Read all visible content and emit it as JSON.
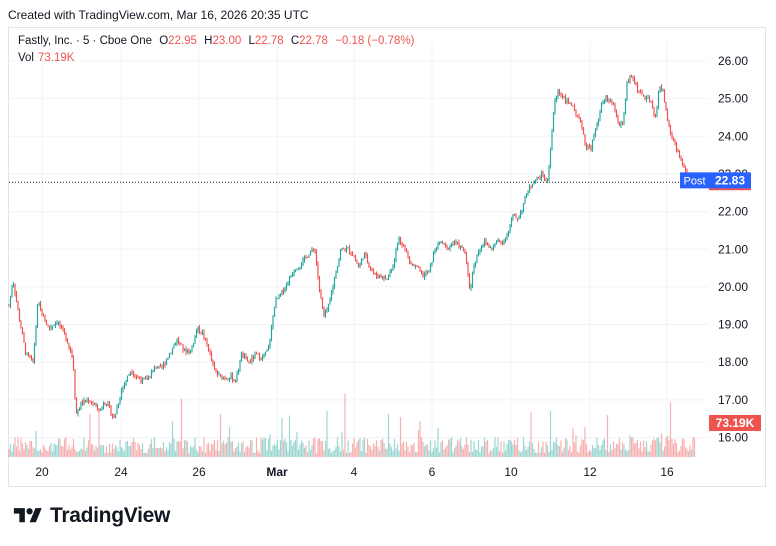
{
  "header": {
    "created_text": "Created with TradingView.com, Mar 16, 2026 20:35 UTC"
  },
  "legend": {
    "symbol": "Fastly, Inc. · 5 · Cboe One",
    "open_label": "O",
    "open": "22.95",
    "high_label": "H",
    "high": "23.00",
    "low_label": "L",
    "low": "22.78",
    "close_label": "C",
    "close": "22.78",
    "change": "−0.18 (−0.78%)",
    "volume_label": "Vol",
    "volume": "73.19K"
  },
  "brand": {
    "name": "TradingView"
  },
  "colors": {
    "up": "#26a69a",
    "down": "#ef5350",
    "post": "#2962ff",
    "grid": "#f0f3fa",
    "text": "#131722"
  },
  "chart_data": {
    "type": "candlestick",
    "interval": "5",
    "ylim": [
      15.5,
      26.4
    ],
    "y_ticks": [
      "16.00",
      "17.00",
      "18.00",
      "19.00",
      "20.00",
      "21.00",
      "22.00",
      "23.00",
      "24.00",
      "25.00",
      "26.00"
    ],
    "x_ticks": [
      "20",
      "24",
      "26",
      "Mar",
      "4",
      "6",
      "10",
      "12",
      "16"
    ],
    "price_path": [
      [
        0,
        19.5
      ],
      [
        4,
        20.2
      ],
      [
        10,
        19.2
      ],
      [
        17,
        18.2
      ],
      [
        24,
        18.0
      ],
      [
        29,
        19.6
      ],
      [
        34,
        19.2
      ],
      [
        40,
        18.9
      ],
      [
        48,
        19.1
      ],
      [
        58,
        18.6
      ],
      [
        64,
        18.1
      ],
      [
        67,
        16.6
      ],
      [
        72,
        16.9
      ],
      [
        80,
        17.0
      ],
      [
        92,
        16.7
      ],
      [
        95,
        17.0
      ],
      [
        100,
        16.8
      ],
      [
        105,
        16.5
      ],
      [
        108,
        16.8
      ],
      [
        113,
        17.3
      ],
      [
        122,
        17.8
      ],
      [
        128,
        17.6
      ],
      [
        135,
        17.5
      ],
      [
        140,
        17.6
      ],
      [
        147,
        17.9
      ],
      [
        152,
        17.8
      ],
      [
        160,
        18.2
      ],
      [
        168,
        18.6
      ],
      [
        175,
        18.3
      ],
      [
        182,
        18.3
      ],
      [
        188,
        18.9
      ],
      [
        193,
        18.8
      ],
      [
        199,
        18.4
      ],
      [
        205,
        17.8
      ],
      [
        211,
        17.6
      ],
      [
        216,
        17.6
      ],
      [
        222,
        17.6
      ],
      [
        227,
        17.5
      ],
      [
        232,
        18.2
      ],
      [
        240,
        18.0
      ],
      [
        247,
        18.2
      ],
      [
        254,
        18.1
      ],
      [
        260,
        18.4
      ],
      [
        266,
        19.6
      ],
      [
        272,
        19.8
      ],
      [
        280,
        20.2
      ],
      [
        286,
        20.5
      ],
      [
        292,
        20.6
      ],
      [
        300,
        20.9
      ],
      [
        306,
        21.0
      ],
      [
        310,
        20.0
      ],
      [
        315,
        19.2
      ],
      [
        320,
        19.5
      ],
      [
        326,
        20.3
      ],
      [
        332,
        21.0
      ],
      [
        340,
        21.0
      ],
      [
        345,
        20.8
      ],
      [
        350,
        20.5
      ],
      [
        355,
        20.9
      ],
      [
        360,
        20.6
      ],
      [
        366,
        20.3
      ],
      [
        372,
        20.3
      ],
      [
        378,
        20.2
      ],
      [
        384,
        20.6
      ],
      [
        390,
        21.3
      ],
      [
        396,
        21.0
      ],
      [
        402,
        20.6
      ],
      [
        408,
        20.5
      ],
      [
        414,
        20.3
      ],
      [
        420,
        20.4
      ],
      [
        426,
        21.0
      ],
      [
        432,
        21.2
      ],
      [
        438,
        21.0
      ],
      [
        444,
        21.2
      ],
      [
        450,
        21.1
      ],
      [
        456,
        20.9
      ],
      [
        461,
        19.9
      ],
      [
        465,
        20.6
      ],
      [
        470,
        21.0
      ],
      [
        476,
        21.2
      ],
      [
        482,
        21.0
      ],
      [
        488,
        21.2
      ],
      [
        494,
        21.2
      ],
      [
        500,
        21.5
      ],
      [
        504,
        21.9
      ],
      [
        508,
        21.8
      ],
      [
        512,
        22.0
      ],
      [
        518,
        22.5
      ],
      [
        524,
        22.8
      ],
      [
        530,
        22.9
      ],
      [
        534,
        23.0
      ],
      [
        538,
        22.7
      ],
      [
        541,
        23.5
      ],
      [
        545,
        24.8
      ],
      [
        549,
        25.2
      ],
      [
        553,
        25.1
      ],
      [
        558,
        24.9
      ],
      [
        562,
        24.9
      ],
      [
        567,
        24.5
      ],
      [
        572,
        24.4
      ],
      [
        577,
        23.7
      ],
      [
        582,
        23.7
      ],
      [
        587,
        24.2
      ],
      [
        592,
        24.8
      ],
      [
        597,
        25.0
      ],
      [
        602,
        24.9
      ],
      [
        606,
        24.7
      ],
      [
        610,
        24.3
      ],
      [
        614,
        24.3
      ],
      [
        618,
        25.4
      ],
      [
        623,
        25.6
      ],
      [
        628,
        25.3
      ],
      [
        632,
        25.1
      ],
      [
        637,
        25.0
      ],
      [
        642,
        24.9
      ],
      [
        646,
        24.4
      ],
      [
        650,
        25.3
      ],
      [
        654,
        25.2
      ],
      [
        658,
        24.5
      ],
      [
        662,
        24.0
      ],
      [
        666,
        23.8
      ],
      [
        670,
        23.5
      ],
      [
        674,
        23.2
      ],
      [
        678,
        23.0
      ],
      [
        683,
        22.9
      ],
      [
        686,
        22.78
      ]
    ],
    "last_price": "22.78",
    "post_label": "Post",
    "post_price": "22.83",
    "last_volume": "73.19K"
  }
}
